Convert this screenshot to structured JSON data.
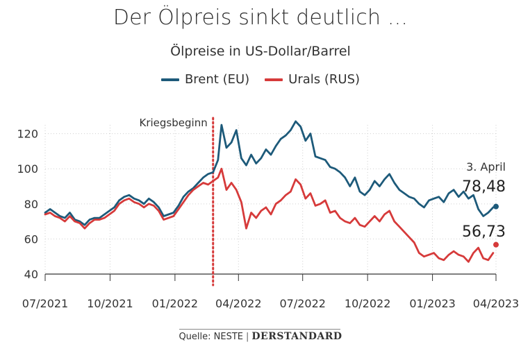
{
  "title": "Der Ölpreis sinkt deutlich ...",
  "subtitle": "Ölpreise in US-Dollar/Barrel",
  "footer": {
    "source": "Quelle: NESTE",
    "brand": "DERSTANDARD"
  },
  "colors": {
    "brent": "#1d5a7a",
    "urals": "#d63a3a",
    "grid": "#cfcfcf",
    "axis": "#333333"
  },
  "chart_data": {
    "type": "line",
    "title": "Der Ölpreis sinkt deutlich ...",
    "subtitle": "Ölpreise in US-Dollar/Barrel",
    "ylim": [
      40,
      125
    ],
    "yticks": [
      40,
      60,
      80,
      100,
      120
    ],
    "xticks": [
      "07/2021",
      "10/2021",
      "01/2022",
      "04/2022",
      "07/2022",
      "10/2022",
      "01/2023",
      "04/2023"
    ],
    "grid": true,
    "legend": "top-center",
    "annotation": {
      "label": "Kriegsbeginn",
      "x": "2022-02-24"
    },
    "end_label": {
      "date": "3. April",
      "brent": "78,48",
      "urals": "56,73"
    },
    "series": [
      {
        "name": "Brent (EU)",
        "x": [
          "2021-07-01",
          "2021-07-08",
          "2021-07-15",
          "2021-07-22",
          "2021-07-29",
          "2021-08-05",
          "2021-08-12",
          "2021-08-19",
          "2021-08-26",
          "2021-09-02",
          "2021-09-09",
          "2021-09-16",
          "2021-09-23",
          "2021-09-30",
          "2021-10-07",
          "2021-10-14",
          "2021-10-21",
          "2021-10-28",
          "2021-11-04",
          "2021-11-11",
          "2021-11-18",
          "2021-11-25",
          "2021-12-02",
          "2021-12-09",
          "2021-12-16",
          "2021-12-23",
          "2021-12-30",
          "2022-01-06",
          "2022-01-13",
          "2022-01-20",
          "2022-01-27",
          "2022-02-03",
          "2022-02-10",
          "2022-02-17",
          "2022-02-24",
          "2022-03-03",
          "2022-03-08",
          "2022-03-15",
          "2022-03-22",
          "2022-03-29",
          "2022-04-05",
          "2022-04-12",
          "2022-04-19",
          "2022-04-26",
          "2022-05-03",
          "2022-05-10",
          "2022-05-17",
          "2022-05-24",
          "2022-05-31",
          "2022-06-07",
          "2022-06-14",
          "2022-06-21",
          "2022-06-28",
          "2022-07-05",
          "2022-07-12",
          "2022-07-19",
          "2022-07-26",
          "2022-08-02",
          "2022-08-09",
          "2022-08-16",
          "2022-08-23",
          "2022-08-30",
          "2022-09-06",
          "2022-09-13",
          "2022-09-20",
          "2022-09-27",
          "2022-10-04",
          "2022-10-11",
          "2022-10-18",
          "2022-10-25",
          "2022-11-01",
          "2022-11-08",
          "2022-11-15",
          "2022-11-22",
          "2022-11-29",
          "2022-12-06",
          "2022-12-13",
          "2022-12-20",
          "2022-12-27",
          "2023-01-03",
          "2023-01-10",
          "2023-01-17",
          "2023-01-24",
          "2023-01-31",
          "2023-02-07",
          "2023-02-14",
          "2023-02-21",
          "2023-02-28",
          "2023-03-07",
          "2023-03-14",
          "2023-03-21",
          "2023-03-28",
          "2023-04-03"
        ],
        "values": [
          75,
          77,
          75,
          73,
          72,
          75,
          71,
          70,
          68,
          71,
          72,
          72,
          74,
          76,
          78,
          82,
          84,
          85,
          83,
          82,
          80,
          83,
          81,
          78,
          73,
          74,
          75,
          79,
          84,
          87,
          89,
          92,
          95,
          97,
          98,
          105,
          125,
          112,
          115,
          122,
          106,
          102,
          108,
          103,
          106,
          111,
          108,
          113,
          117,
          119,
          122,
          127,
          124,
          116,
          120,
          107,
          106,
          105,
          101,
          100,
          98,
          95,
          90,
          95,
          87,
          85,
          88,
          93,
          90,
          94,
          97,
          92,
          88,
          86,
          84,
          83,
          80,
          78,
          82,
          83,
          84,
          81,
          86,
          88,
          84,
          87,
          83,
          85,
          77,
          73,
          75,
          78,
          78.48
        ]
      },
      {
        "name": "Urals (RUS)",
        "x": [
          "2021-07-01",
          "2021-07-08",
          "2021-07-15",
          "2021-07-22",
          "2021-07-29",
          "2021-08-05",
          "2021-08-12",
          "2021-08-19",
          "2021-08-26",
          "2021-09-02",
          "2021-09-09",
          "2021-09-16",
          "2021-09-23",
          "2021-09-30",
          "2021-10-07",
          "2021-10-14",
          "2021-10-21",
          "2021-10-28",
          "2021-11-04",
          "2021-11-11",
          "2021-11-18",
          "2021-11-25",
          "2021-12-02",
          "2021-12-09",
          "2021-12-16",
          "2021-12-23",
          "2021-12-30",
          "2022-01-06",
          "2022-01-13",
          "2022-01-20",
          "2022-01-27",
          "2022-02-03",
          "2022-02-10",
          "2022-02-17",
          "2022-02-24",
          "2022-03-03",
          "2022-03-08",
          "2022-03-15",
          "2022-03-22",
          "2022-03-29",
          "2022-04-05",
          "2022-04-12",
          "2022-04-19",
          "2022-04-26",
          "2022-05-03",
          "2022-05-10",
          "2022-05-17",
          "2022-05-24",
          "2022-05-31",
          "2022-06-07",
          "2022-06-14",
          "2022-06-21",
          "2022-06-28",
          "2022-07-05",
          "2022-07-12",
          "2022-07-19",
          "2022-07-26",
          "2022-08-02",
          "2022-08-09",
          "2022-08-16",
          "2022-08-23",
          "2022-08-30",
          "2022-09-06",
          "2022-09-13",
          "2022-09-20",
          "2022-09-27",
          "2022-10-04",
          "2022-10-11",
          "2022-10-18",
          "2022-10-25",
          "2022-11-01",
          "2022-11-08",
          "2022-11-15",
          "2022-11-22",
          "2022-11-29",
          "2022-12-06",
          "2022-12-13",
          "2022-12-20",
          "2022-12-27",
          "2023-01-03",
          "2023-01-10",
          "2023-01-17",
          "2023-01-24",
          "2023-01-31",
          "2023-02-07",
          "2023-02-14",
          "2023-02-21",
          "2023-02-28",
          "2023-03-07",
          "2023-03-14",
          "2023-03-21",
          "2023-03-28",
          "2023-04-03"
        ],
        "values": [
          74,
          75,
          73,
          72,
          70,
          73,
          70,
          69,
          66,
          69,
          71,
          71,
          72,
          74,
          76,
          80,
          82,
          83,
          81,
          80,
          78,
          80,
          79,
          76,
          71,
          72,
          73,
          77,
          81,
          85,
          88,
          90,
          92,
          91,
          93,
          95,
          100,
          88,
          92,
          88,
          81,
          66,
          75,
          72,
          76,
          78,
          74,
          80,
          82,
          85,
          87,
          94,
          91,
          83,
          86,
          79,
          80,
          82,
          75,
          76,
          72,
          70,
          69,
          72,
          68,
          67,
          70,
          73,
          70,
          74,
          76,
          70,
          67,
          64,
          61,
          58,
          52,
          50,
          51,
          52,
          49,
          48,
          51,
          53,
          51,
          50,
          47,
          52,
          55,
          49,
          48,
          52,
          56.73
        ]
      }
    ]
  }
}
